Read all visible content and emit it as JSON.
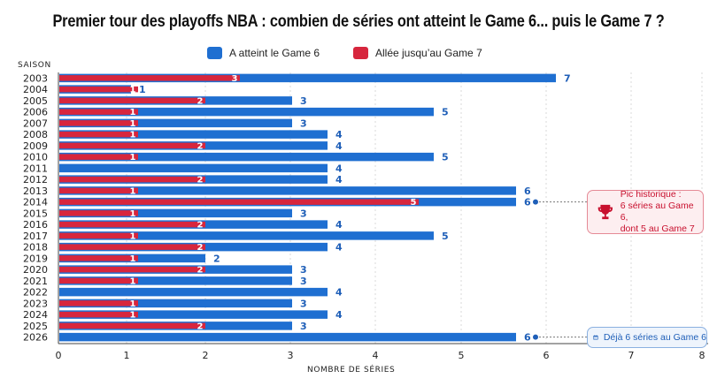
{
  "title": "Premier tour des playoffs NBA : combien de séries ont atteint le Game 6... puis le Game 7  ?",
  "legend": [
    {
      "label": "A atteint le Game 6",
      "color": "#1f6fd1"
    },
    {
      "label": "Allée jusqu’au Game 7",
      "color": "#d7263d"
    }
  ],
  "callouts": {
    "peak": {
      "icon": "trophy-icon",
      "lines": [
        "Pic historique :",
        "6 séries au Game 6,",
        "dont 5 au Game 7"
      ],
      "season": "2014"
    },
    "current": {
      "icon": "calendar-icon",
      "text": "Déjà 6 séries au Game 6",
      "season": "2026"
    }
  },
  "chart_data": {
    "type": "bar",
    "orientation": "horizontal",
    "title": "Premier tour des playoffs NBA : combien de séries ont atteint le Game 6... puis le Game 7  ?",
    "ylabel": "SAISON",
    "xlabel": "NOMBRE DE SÉRIES",
    "xlim": [
      0,
      8
    ],
    "xticks": [
      "0",
      "1",
      "2",
      "3",
      "4",
      "5",
      "6",
      "7",
      "8"
    ],
    "grid": true,
    "legend_position": "top-center",
    "categories": [
      "2003",
      "2004",
      "2005",
      "2006",
      "2007",
      "2008",
      "2009",
      "2010",
      "2011",
      "2012",
      "2013",
      "2014",
      "2015",
      "2016",
      "2017",
      "2018",
      "2019",
      "2020",
      "2021",
      "2022",
      "2023",
      "2024",
      "2025",
      "2026"
    ],
    "series": [
      {
        "name": "A atteint le Game 6",
        "color": "#1f6fd1",
        "values": [
          7,
          1,
          3,
          5,
          3,
          4,
          4,
          5,
          4,
          4,
          6,
          6,
          3,
          4,
          5,
          4,
          2,
          3,
          3,
          4,
          3,
          4,
          3,
          6
        ]
      },
      {
        "name": "Allée jusqu’au Game 7",
        "color": "#d7263d",
        "values": [
          3,
          1,
          2,
          1,
          1,
          1,
          2,
          1,
          0,
          2,
          1,
          5,
          1,
          2,
          1,
          2,
          1,
          2,
          1,
          0,
          1,
          1,
          2,
          0
        ]
      }
    ]
  }
}
